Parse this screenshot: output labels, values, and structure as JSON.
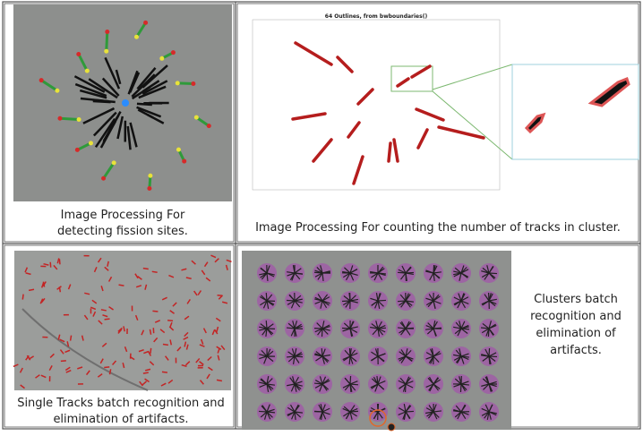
{
  "panels": [
    {
      "caption": [
        "Image Processing For",
        "detecting fission sites."
      ]
    },
    {
      "title": "64 Outlines, from bwboundaries()",
      "caption": [
        "Image Processing For counting the number of tracks in cluster."
      ]
    },
    {
      "caption": [
        "Single Tracks batch recognition and",
        "elimination of artifacts."
      ]
    },
    {
      "caption": [
        "Clusters batch",
        "recognition and",
        "elimination of",
        "artifacts."
      ]
    }
  ]
}
